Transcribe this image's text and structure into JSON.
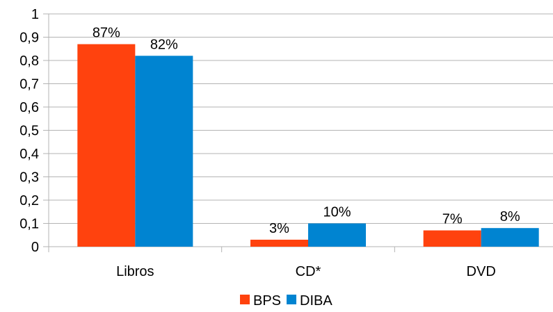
{
  "chart_data": {
    "type": "bar",
    "categories": [
      "Libros",
      "CD*",
      "DVD"
    ],
    "series": [
      {
        "name": "BPS",
        "color": "#ff420e",
        "values": [
          0.87,
          0.03,
          0.07
        ],
        "labels": [
          "87%",
          "3%",
          "7%"
        ]
      },
      {
        "name": "DIBA",
        "color": "#0084d1",
        "values": [
          0.82,
          0.1,
          0.08
        ],
        "labels": [
          "82%",
          "10%",
          "8%"
        ]
      }
    ],
    "ylim": [
      0,
      1
    ],
    "yticks": [
      0,
      0.1,
      0.2,
      0.3,
      0.4,
      0.5,
      0.6,
      0.7,
      0.8,
      0.9,
      1
    ],
    "ytick_labels": [
      "0",
      "0,1",
      "0,2",
      "0,3",
      "0,4",
      "0,5",
      "0,6",
      "0,7",
      "0,8",
      "0,9",
      "1"
    ],
    "grid": true,
    "legend_position": "bottom",
    "title": "",
    "xlabel": "",
    "ylabel": ""
  }
}
